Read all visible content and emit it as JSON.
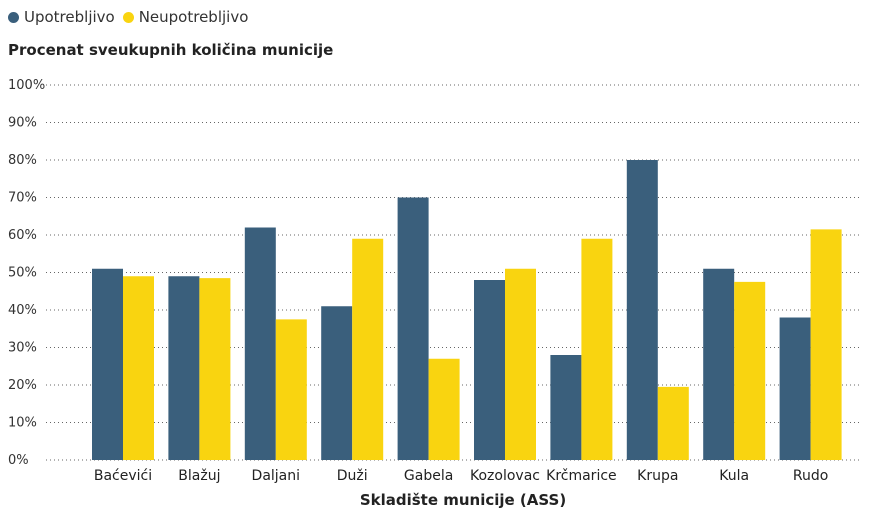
{
  "chart_data": {
    "type": "bar",
    "ylabel": "Procenat sveukupnih količina municije",
    "xlabel": "Skladište municije (ASS)",
    "ylim": [
      0,
      100
    ],
    "yticks": [
      "0%",
      "10%",
      "20%",
      "30%",
      "40%",
      "50%",
      "60%",
      "70%",
      "80%",
      "90%",
      "100%"
    ],
    "grid": true,
    "legend_position": "top-left",
    "categories": [
      "Baćevići",
      "Blažuj",
      "Daljani",
      "Duži",
      "Gabela",
      "Kozolovac",
      "Krčmarice",
      "Krupa",
      "Kula",
      "Rudo"
    ],
    "series": [
      {
        "name": "Upotrebljivo",
        "color": "#3a5f7c",
        "values": [
          51,
          49,
          62,
          41,
          70,
          48,
          28,
          80,
          51,
          38
        ]
      },
      {
        "name": "Neupotrebljivo",
        "color": "#f9d410",
        "values": [
          49,
          48.5,
          37.5,
          59,
          27,
          51,
          59,
          19.5,
          47.5,
          61.5
        ]
      }
    ]
  }
}
